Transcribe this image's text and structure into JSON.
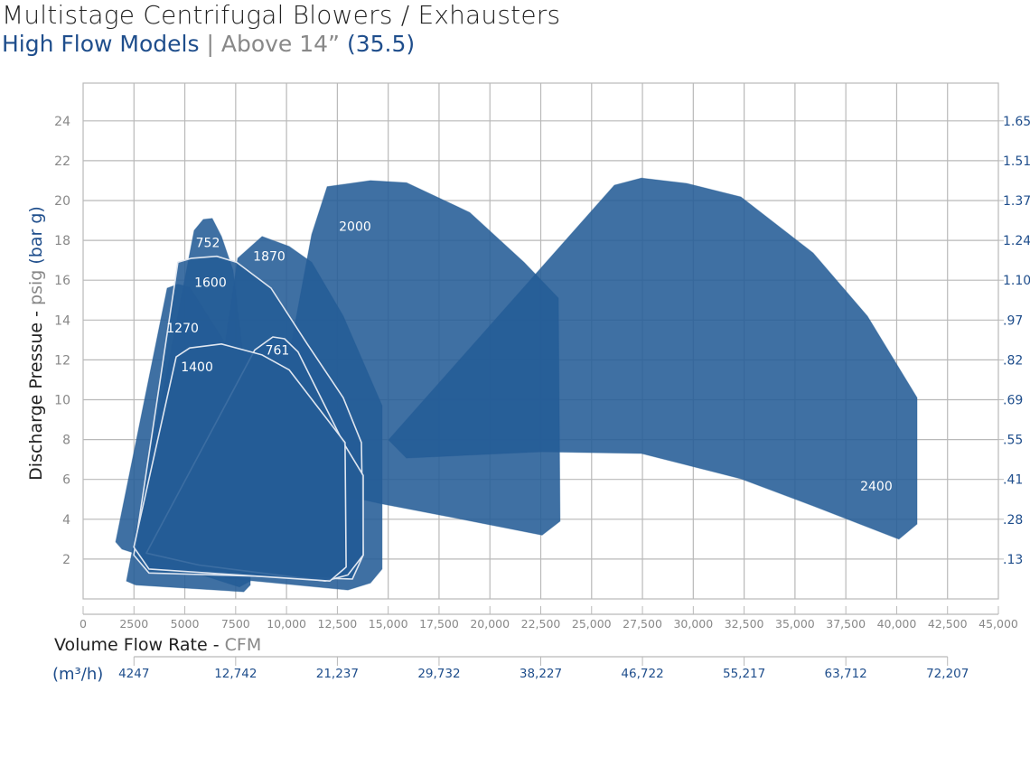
{
  "chart_data": {
    "type": "area",
    "title": "Multistage Centrifugal Blowers / Exhausters",
    "subtitle": {
      "part1": "High Flow Models",
      "sep": "|",
      "part2": "Above 14”",
      "part3": "(35.5)"
    },
    "ylabel": {
      "main": "Discharge Pressue - ",
      "unit": "psig",
      "alt_unit": " (bar g)"
    },
    "xlabel": {
      "main": "Volume Flow Rate - ",
      "unit": "CFM"
    },
    "x2label": "(m³/h)",
    "xlim": [
      0,
      45000
    ],
    "ylim": [
      0,
      26
    ],
    "grid": true,
    "x_ticks": [
      0,
      2500,
      5000,
      7500,
      10000,
      12500,
      15000,
      17500,
      20000,
      22500,
      25000,
      27500,
      30000,
      32500,
      35000,
      37500,
      40000,
      42500,
      45000
    ],
    "x_tick_labels": [
      "0",
      "2500",
      "5000",
      "7500",
      "10,000",
      "12,500",
      "15,000",
      "17,500",
      "20,000",
      "22,500",
      "25,000",
      "27,500",
      "30,000",
      "32,500",
      "35,000",
      "37,500",
      "40,000",
      "42,500",
      "45,000"
    ],
    "y_ticks": [
      2,
      4,
      6,
      8,
      10,
      12,
      14,
      16,
      18,
      20,
      22,
      24
    ],
    "y_tick_labels": [
      "2",
      "4",
      "6",
      "8",
      "10",
      "12",
      "14",
      "16",
      "18",
      "20",
      "22",
      "24"
    ],
    "y2_tick_labels": [
      ".13",
      ".28",
      ".41",
      ".55",
      ".69",
      ".82",
      ".97",
      "1.10",
      "1.24",
      "1.37",
      "1.51",
      "1.65"
    ],
    "x2_ticks_cfm": [
      2500,
      7500,
      12500,
      17500,
      22500,
      27500,
      32500,
      37500,
      42500
    ],
    "x2_tick_labels": [
      "4247",
      "12,742",
      "21,237",
      "29,732",
      "38,227",
      "46,722",
      "55,217",
      "63,712",
      "72,207"
    ],
    "colors": {
      "fill": "#245c96",
      "outline": "#dfe6f0",
      "grid": "#b9b9b9",
      "axis_text": "#888888",
      "blue_text": "#1f4e8c",
      "label": "#ffffff"
    },
    "series": [
      {
        "name": "2400",
        "label_at": [
          39000,
          5.67
        ],
        "outlined": false,
        "points": [
          [
            15015,
            7.98
          ],
          [
            26120,
            20.77
          ],
          [
            27450,
            21.13
          ],
          [
            29670,
            20.86
          ],
          [
            32340,
            20.18
          ],
          [
            35890,
            17.37
          ],
          [
            38560,
            14.2
          ],
          [
            41000,
            10.1
          ],
          [
            41000,
            3.76
          ],
          [
            40110,
            3.0
          ],
          [
            35890,
            4.67
          ],
          [
            32340,
            6.03
          ],
          [
            27450,
            7.3
          ],
          [
            22570,
            7.39
          ],
          [
            15900,
            7.07
          ]
        ]
      },
      {
        "name": "2000",
        "label_at": [
          13370,
          18.7
        ],
        "outlined": false,
        "points": [
          [
            9240,
            7.4
          ],
          [
            11240,
            18.3
          ],
          [
            12000,
            20.7
          ],
          [
            14125,
            21.0
          ],
          [
            15900,
            20.9
          ],
          [
            19010,
            19.4
          ],
          [
            21680,
            16.9
          ],
          [
            23365,
            15.1
          ],
          [
            23450,
            3.9
          ],
          [
            22565,
            3.2
          ],
          [
            18120,
            4.1
          ],
          [
            14570,
            4.8
          ],
          [
            9240,
            6.0
          ]
        ]
      },
      {
        "name": "1870",
        "label_at": [
          9150,
          17.2
        ],
        "outlined": false,
        "points": [
          [
            7600,
            17.1
          ],
          [
            8800,
            18.2
          ],
          [
            10130,
            17.7
          ],
          [
            11240,
            16.9
          ],
          [
            12790,
            14.2
          ],
          [
            14700,
            9.7
          ],
          [
            14700,
            1.5
          ],
          [
            14125,
            0.8
          ],
          [
            13015,
            0.45
          ],
          [
            7020,
            1.04
          ],
          [
            5460,
            2.4
          ]
        ]
      },
      {
        "name": "752",
        "label_at": [
          6130,
          17.9
        ],
        "outlined": false,
        "points": [
          [
            2130,
            0.9
          ],
          [
            5460,
            18.5
          ],
          [
            5910,
            19.05
          ],
          [
            6350,
            19.1
          ],
          [
            6800,
            18.2
          ],
          [
            7370,
            16.5
          ],
          [
            8220,
            9.2
          ],
          [
            8220,
            0.7
          ],
          [
            7900,
            0.36
          ],
          [
            2580,
            0.7
          ]
        ]
      },
      {
        "name": "1270",
        "label_at": [
          4890,
          13.6
        ],
        "outlined": false,
        "points": [
          [
            1600,
            2.86
          ],
          [
            4130,
            15.6
          ],
          [
            4660,
            15.8
          ],
          [
            5240,
            15.65
          ],
          [
            6890,
            13
          ],
          [
            8220,
            9.1
          ],
          [
            8220,
            0.9
          ],
          [
            7680,
            0.6
          ],
          [
            1910,
            2.5
          ]
        ]
      },
      {
        "name": "1600",
        "label_at": [
          6260,
          15.9
        ],
        "outlined": true,
        "points": [
          [
            2490,
            2.2
          ],
          [
            4660,
            16.9
          ],
          [
            5330,
            17.1
          ],
          [
            6570,
            17.2
          ],
          [
            7550,
            16.9
          ],
          [
            9240,
            15.6
          ],
          [
            11020,
            12.8
          ],
          [
            12790,
            10.1
          ],
          [
            13680,
            7.85
          ],
          [
            13770,
            2.2
          ],
          [
            13240,
            1.0
          ],
          [
            3240,
            1.3
          ]
        ]
      },
      {
        "name": "761",
        "label_at": [
          9550,
          12.5
        ],
        "outlined": true,
        "points": [
          [
            3110,
            2.3
          ],
          [
            8440,
            12.5
          ],
          [
            9330,
            13.15
          ],
          [
            9900,
            13.06
          ],
          [
            10570,
            12.4
          ],
          [
            12790,
            7.85
          ],
          [
            13770,
            6.2
          ],
          [
            13770,
            2.2
          ],
          [
            13015,
            1.2
          ],
          [
            11900,
            0.9
          ],
          [
            5690,
            1.7
          ]
        ]
      },
      {
        "name": "1400",
        "label_at": [
          5600,
          11.65
        ],
        "outlined": true,
        "points": [
          [
            2490,
            2.6
          ],
          [
            4575,
            12.15
          ],
          [
            5240,
            12.6
          ],
          [
            6800,
            12.8
          ],
          [
            8800,
            12.25
          ],
          [
            10130,
            11.5
          ],
          [
            12880,
            7.85
          ],
          [
            12930,
            1.6
          ],
          [
            12130,
            0.9
          ],
          [
            3240,
            1.5
          ]
        ]
      }
    ]
  }
}
